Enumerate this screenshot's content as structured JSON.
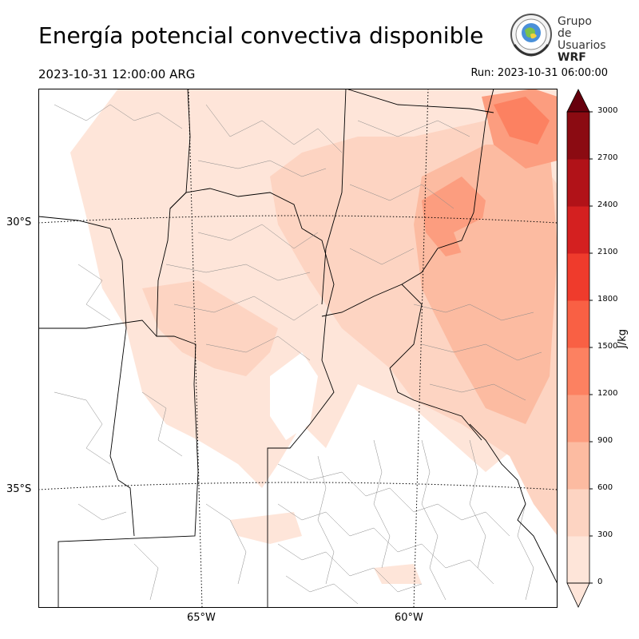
{
  "header": {
    "title": "Energía potencial convectiva disponible",
    "valid_time": "2023-10-31 12:00:00 ARG",
    "run_time": "Run: 2023-10-31 06:00:00"
  },
  "logo": {
    "line1": "Grupo de",
    "line2": "Usuarios",
    "line3": "WRF",
    "icon": "globe-seal-icon"
  },
  "map": {
    "lat_labels": [
      "30°S",
      "35°S"
    ],
    "lon_labels": [
      "65°W",
      "60°W"
    ],
    "field": "CAPE",
    "colormap": "Reds"
  },
  "colorbar": {
    "unit": "J/kg",
    "ticks": [
      "0",
      "300",
      "600",
      "900",
      "1200",
      "1500",
      "1800",
      "2100",
      "2400",
      "2700",
      "3000"
    ],
    "colors": [
      "#fee5d9",
      "#fdd4c2",
      "#fcbba1",
      "#fc9d7f",
      "#fc8161",
      "#f96044",
      "#ef3b2c",
      "#d42020",
      "#b11218",
      "#8b0b12",
      "#67000d"
    ],
    "extend": "both"
  }
}
